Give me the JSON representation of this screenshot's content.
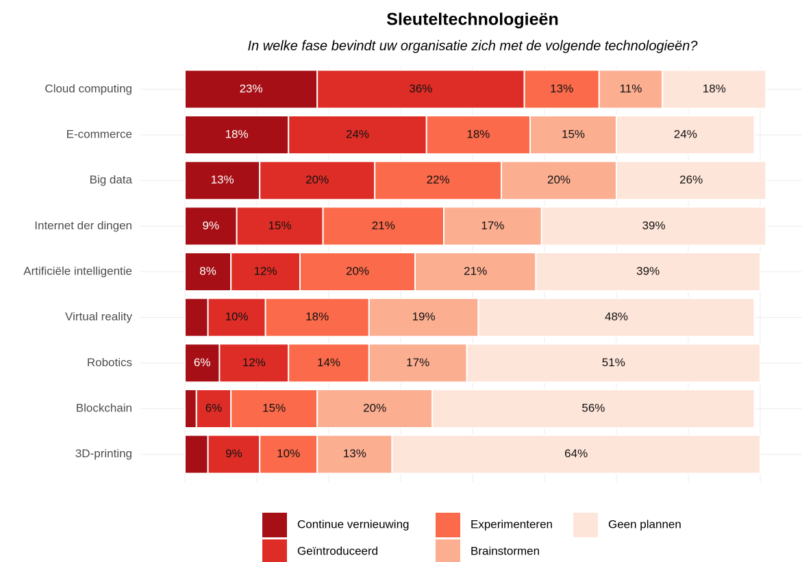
{
  "chart_data": {
    "type": "stacked-barh",
    "title": "Sleuteltechnologieën",
    "subtitle": "In welke fase bevindt uw organisatie zich met de volgende technologieën?",
    "categories": [
      "Cloud computing",
      "E-commerce",
      "Big data",
      "Internet der dingen",
      "Artificiële intelligentie",
      "Virtual reality",
      "Robotics",
      "Blockchain",
      "3D-printing"
    ],
    "series": [
      {
        "name": "Continue vernieuwing",
        "color": "#a50f15",
        "label_color": "#ffffff",
        "values": [
          23,
          18,
          13,
          9,
          8,
          4,
          6,
          2,
          4
        ],
        "value_labels": [
          "23%",
          "18%",
          "13%",
          "9%",
          "8%",
          null,
          "6%",
          null,
          null
        ]
      },
      {
        "name": "Geïntroduceerd",
        "color": "#de2d26",
        "label_color": "#111111",
        "values": [
          36,
          24,
          20,
          15,
          12,
          10,
          12,
          6,
          9
        ],
        "value_labels": [
          "36%",
          "24%",
          "20%",
          "15%",
          "12%",
          "10%",
          "12%",
          "6%",
          "9%"
        ]
      },
      {
        "name": "Experimenteren",
        "color": "#fb6a4a",
        "label_color": "#111111",
        "values": [
          13,
          18,
          22,
          21,
          20,
          18,
          14,
          15,
          10
        ],
        "value_labels": [
          "13%",
          "18%",
          "22%",
          "21%",
          "20%",
          "18%",
          "14%",
          "15%",
          "10%"
        ]
      },
      {
        "name": "Brainstormen",
        "color": "#fcae91",
        "label_color": "#111111",
        "values": [
          11,
          15,
          20,
          17,
          21,
          19,
          17,
          20,
          13
        ],
        "value_labels": [
          "11%",
          "15%",
          "20%",
          "17%",
          "21%",
          "19%",
          "17%",
          "20%",
          "13%"
        ]
      },
      {
        "name": "Geen plannen",
        "color": "#fee5d9",
        "label_color": "#111111",
        "values": [
          18,
          24,
          26,
          39,
          39,
          48,
          51,
          56,
          64
        ],
        "value_labels": [
          "18%",
          "24%",
          "26%",
          "39%",
          "39%",
          "48%",
          "51%",
          "56%",
          "64%"
        ]
      }
    ],
    "xlim": [
      0,
      100
    ],
    "xticks": [
      0,
      12.5,
      25,
      37.5,
      50,
      62.5,
      75,
      87.5,
      100
    ],
    "grid": true,
    "legend": "bottom"
  }
}
